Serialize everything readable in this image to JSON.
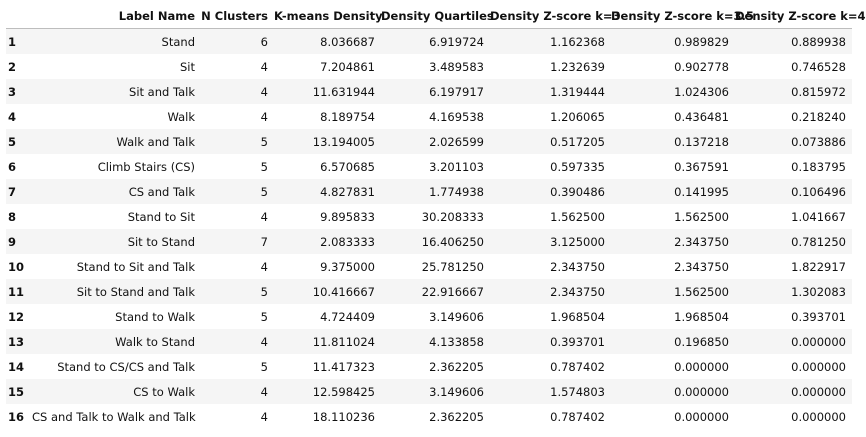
{
  "table": {
    "columns": [
      "",
      "Label Name",
      "N Clusters",
      "K-means Density",
      "Density Quartiles",
      "Density Z-score k=3",
      "Density Z-score k=3.5",
      "Density Z-score k=4"
    ],
    "rows": [
      [
        "1",
        "Stand",
        "6",
        "8.036687",
        "6.919724",
        "1.162368",
        "0.989829",
        "0.889938"
      ],
      [
        "2",
        "Sit",
        "4",
        "7.204861",
        "3.489583",
        "1.232639",
        "0.902778",
        "0.746528"
      ],
      [
        "3",
        "Sit and Talk",
        "4",
        "11.631944",
        "6.197917",
        "1.319444",
        "1.024306",
        "0.815972"
      ],
      [
        "4",
        "Walk",
        "4",
        "8.189754",
        "4.169538",
        "1.206065",
        "0.436481",
        "0.218240"
      ],
      [
        "5",
        "Walk and Talk",
        "5",
        "13.194005",
        "2.026599",
        "0.517205",
        "0.137218",
        "0.073886"
      ],
      [
        "6",
        "Climb Stairs (CS)",
        "5",
        "6.570685",
        "3.201103",
        "0.597335",
        "0.367591",
        "0.183795"
      ],
      [
        "7",
        "CS and Talk",
        "5",
        "4.827831",
        "1.774938",
        "0.390486",
        "0.141995",
        "0.106496"
      ],
      [
        "8",
        "Stand to Sit",
        "4",
        "9.895833",
        "30.208333",
        "1.562500",
        "1.562500",
        "1.041667"
      ],
      [
        "9",
        "Sit to Stand",
        "7",
        "2.083333",
        "16.406250",
        "3.125000",
        "2.343750",
        "0.781250"
      ],
      [
        "10",
        "Stand to Sit and Talk",
        "4",
        "9.375000",
        "25.781250",
        "2.343750",
        "2.343750",
        "1.822917"
      ],
      [
        "11",
        "Sit to Stand and Talk",
        "5",
        "10.416667",
        "22.916667",
        "2.343750",
        "1.562500",
        "1.302083"
      ],
      [
        "12",
        "Stand to Walk",
        "5",
        "4.724409",
        "3.149606",
        "1.968504",
        "1.968504",
        "0.393701"
      ],
      [
        "13",
        "Walk to Stand",
        "4",
        "11.811024",
        "4.133858",
        "0.393701",
        "0.196850",
        "0.000000"
      ],
      [
        "14",
        "Stand to CS/CS and Talk",
        "5",
        "11.417323",
        "2.362205",
        "0.787402",
        "0.000000",
        "0.000000"
      ],
      [
        "15",
        "CS to Walk",
        "4",
        "12.598425",
        "3.149606",
        "1.574803",
        "0.000000",
        "0.000000"
      ],
      [
        "16",
        "CS and Talk to Walk and Talk",
        "4",
        "18.110236",
        "2.362205",
        "0.787402",
        "0.000000",
        "0.000000"
      ]
    ]
  }
}
